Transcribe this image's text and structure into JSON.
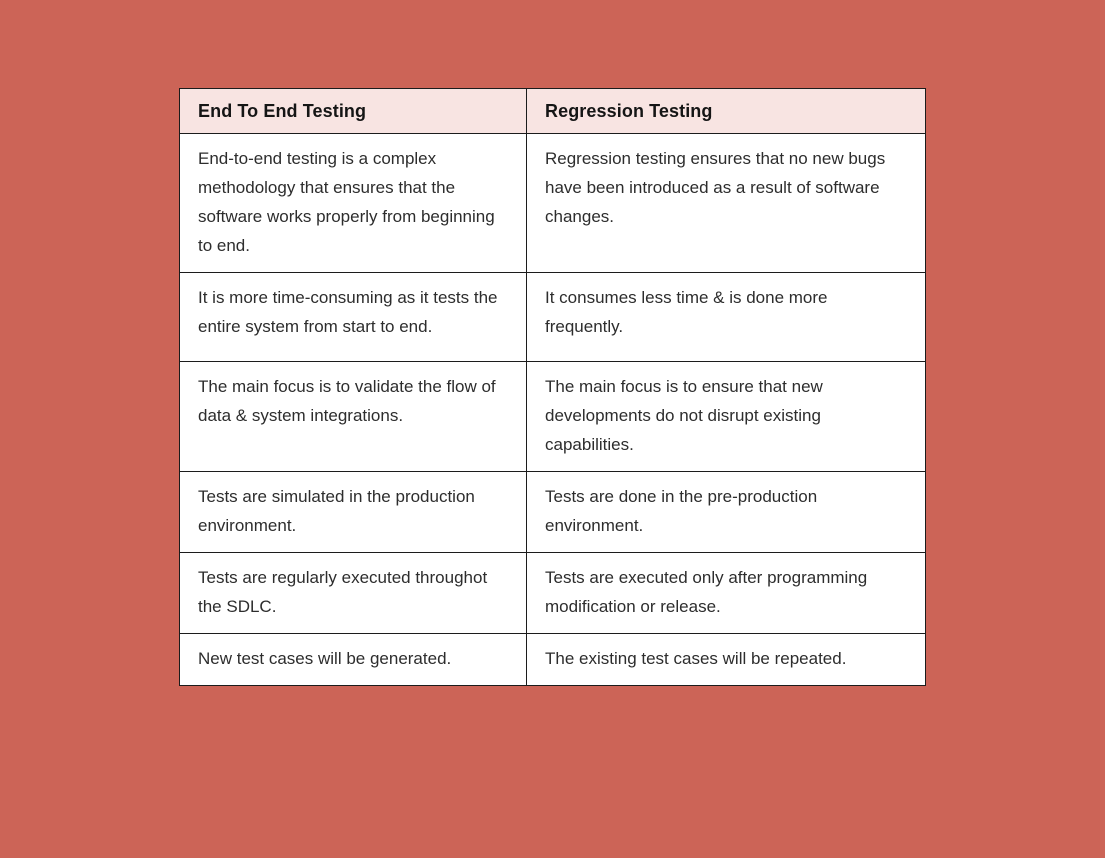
{
  "colors": {
    "page_background": "#cc6457",
    "header_background": "#f8e4e2",
    "table_border": "#1c1c1c",
    "cell_background": "#ffffff",
    "body_text": "#2d2d2d",
    "header_text": "#151515"
  },
  "chart_data": {
    "type": "table",
    "columns": [
      "End To End Testing",
      "Regression Testing"
    ],
    "rows": [
      [
        "End-to-end testing is a complex methodology that ensures that the software works properly from beginning to end.",
        "Regression testing ensures that no new bugs have been introduced as a result of software changes."
      ],
      [
        "It is more time-consuming as it tests the entire system from start to end.",
        "It consumes less time & is done more frequently."
      ],
      [
        "The main focus is to validate the flow of data & system integrations.",
        "The main focus is to ensure that new developments do not disrupt existing capabilities."
      ],
      [
        "Tests are simulated in the production environment.",
        "Tests are done in the pre-production environment."
      ],
      [
        "Tests are regularly executed throughot the SDLC.",
        "Tests are executed only after programming modification or release."
      ],
      [
        "New test cases will be generated.",
        "The existing test cases will be repeated."
      ]
    ]
  }
}
